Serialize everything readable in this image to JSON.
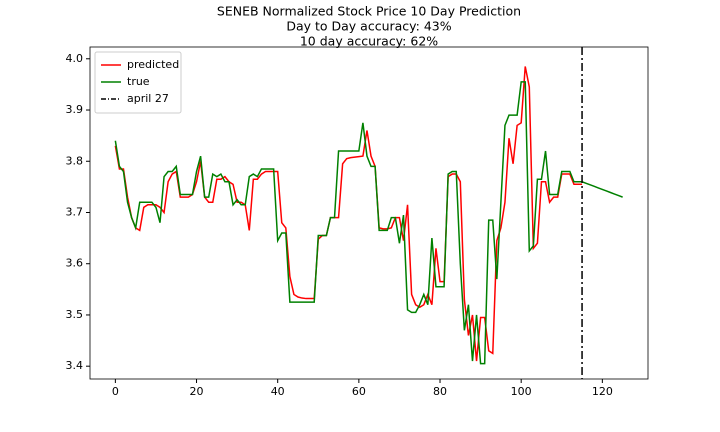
{
  "chart_data": {
    "type": "line",
    "title": "SENEB Normalized Stock Price 10 Day Prediction",
    "subtitle": [
      "Day to Day accuracy: 43%",
      "10 day accuracy: 62%"
    ],
    "x": [
      0,
      1,
      2,
      3,
      4,
      5,
      6,
      7,
      8,
      9,
      10,
      11,
      12,
      13,
      14,
      15,
      16,
      17,
      18,
      19,
      20,
      21,
      22,
      23,
      24,
      25,
      26,
      27,
      28,
      29,
      30,
      31,
      32,
      33,
      34,
      35,
      36,
      37,
      38,
      39,
      40,
      41,
      42,
      43,
      44,
      45,
      46,
      47,
      48,
      49,
      50,
      51,
      52,
      53,
      54,
      55,
      56,
      57,
      58,
      59,
      60,
      61,
      62,
      63,
      64,
      65,
      66,
      67,
      68,
      69,
      70,
      71,
      72,
      73,
      74,
      75,
      76,
      77,
      78,
      79,
      80,
      81,
      82,
      83,
      84,
      85,
      86,
      87,
      88,
      89,
      90,
      91,
      92,
      93,
      94,
      95,
      96,
      97,
      98,
      99,
      100,
      101,
      102,
      103,
      104,
      105,
      106,
      107,
      108,
      109,
      110,
      111,
      112,
      113,
      114,
      115,
      116,
      117,
      118,
      119,
      120,
      121,
      122,
      123,
      124,
      125
    ],
    "series": [
      {
        "name": "predicted",
        "color": "#ff0000",
        "values": [
          3.83,
          3.785,
          3.785,
          3.73,
          3.69,
          3.67,
          3.665,
          3.71,
          3.715,
          3.715,
          3.715,
          3.71,
          3.7,
          3.76,
          3.775,
          3.78,
          3.73,
          3.73,
          3.73,
          3.735,
          3.76,
          3.8,
          3.73,
          3.72,
          3.72,
          3.765,
          3.765,
          3.77,
          3.76,
          3.755,
          3.72,
          3.72,
          3.715,
          3.665,
          3.765,
          3.765,
          3.775,
          3.78,
          3.78,
          3.78,
          3.78,
          3.68,
          3.67,
          3.575,
          3.54,
          3.535,
          3.533,
          3.532,
          3.532,
          3.532,
          3.648,
          3.655,
          3.655,
          3.69,
          3.69,
          3.69,
          3.795,
          3.805,
          3.807,
          3.808,
          3.809,
          3.81,
          3.86,
          3.81,
          3.79,
          3.67,
          3.668,
          3.668,
          3.67,
          3.69,
          3.69,
          3.645,
          3.715,
          3.54,
          3.52,
          3.515,
          3.52,
          3.54,
          3.52,
          3.63,
          3.565,
          3.565,
          3.77,
          3.775,
          3.775,
          3.76,
          3.53,
          3.46,
          3.5,
          3.41,
          3.495,
          3.495,
          3.43,
          3.425,
          3.645,
          3.67,
          3.72,
          3.845,
          3.795,
          3.87,
          3.875,
          3.985,
          3.945,
          3.63,
          3.64,
          3.76,
          3.76,
          3.72,
          3.73,
          3.73,
          3.775,
          3.775,
          3.775,
          3.755,
          3.755,
          3.755,
          null,
          null,
          null,
          null,
          null,
          null,
          null,
          null,
          null,
          null
        ]
      },
      {
        "name": "true",
        "color": "#008000",
        "values": [
          3.84,
          3.79,
          3.78,
          3.72,
          3.69,
          3.67,
          3.72,
          3.72,
          3.72,
          3.72,
          3.71,
          3.68,
          3.77,
          3.78,
          3.78,
          3.79,
          3.735,
          3.735,
          3.735,
          3.735,
          3.78,
          3.81,
          3.73,
          3.73,
          3.775,
          3.77,
          3.775,
          3.76,
          3.76,
          3.715,
          3.725,
          3.715,
          3.715,
          3.77,
          3.775,
          3.77,
          3.785,
          3.785,
          3.785,
          3.785,
          3.645,
          3.66,
          3.66,
          3.525,
          3.525,
          3.525,
          3.525,
          3.525,
          3.525,
          3.525,
          3.655,
          3.655,
          3.655,
          3.69,
          3.69,
          3.82,
          3.82,
          3.82,
          3.82,
          3.82,
          3.82,
          3.875,
          3.81,
          3.79,
          3.79,
          3.665,
          3.665,
          3.665,
          3.69,
          3.69,
          3.64,
          3.695,
          3.51,
          3.505,
          3.505,
          3.52,
          3.54,
          3.52,
          3.65,
          3.555,
          3.555,
          3.555,
          3.775,
          3.78,
          3.78,
          3.6,
          3.47,
          3.52,
          3.41,
          3.5,
          3.405,
          3.405,
          3.685,
          3.685,
          3.57,
          3.72,
          3.87,
          3.89,
          3.89,
          3.89,
          3.955,
          3.955,
          3.625,
          3.635,
          3.765,
          3.765,
          3.82,
          3.735,
          3.735,
          3.735,
          3.78,
          3.78,
          3.78,
          3.76,
          3.76,
          3.76,
          3.757,
          3.754,
          3.751,
          3.748,
          3.745,
          3.742,
          3.739,
          3.736,
          3.733,
          3.73
        ]
      }
    ],
    "vlines": [
      {
        "x": 115,
        "name": "april 27",
        "color": "#000000"
      }
    ],
    "xlim": [
      -6.25,
      131.25
    ],
    "ylim": [
      3.375,
      4.023
    ],
    "xticks": [
      0,
      20,
      40,
      60,
      80,
      100,
      120
    ],
    "yticks": [
      3.4,
      3.5,
      3.6,
      3.7,
      3.8,
      3.9,
      {
        "value": 4,
        "label": "4.0"
      }
    ],
    "legend": "upper left"
  }
}
